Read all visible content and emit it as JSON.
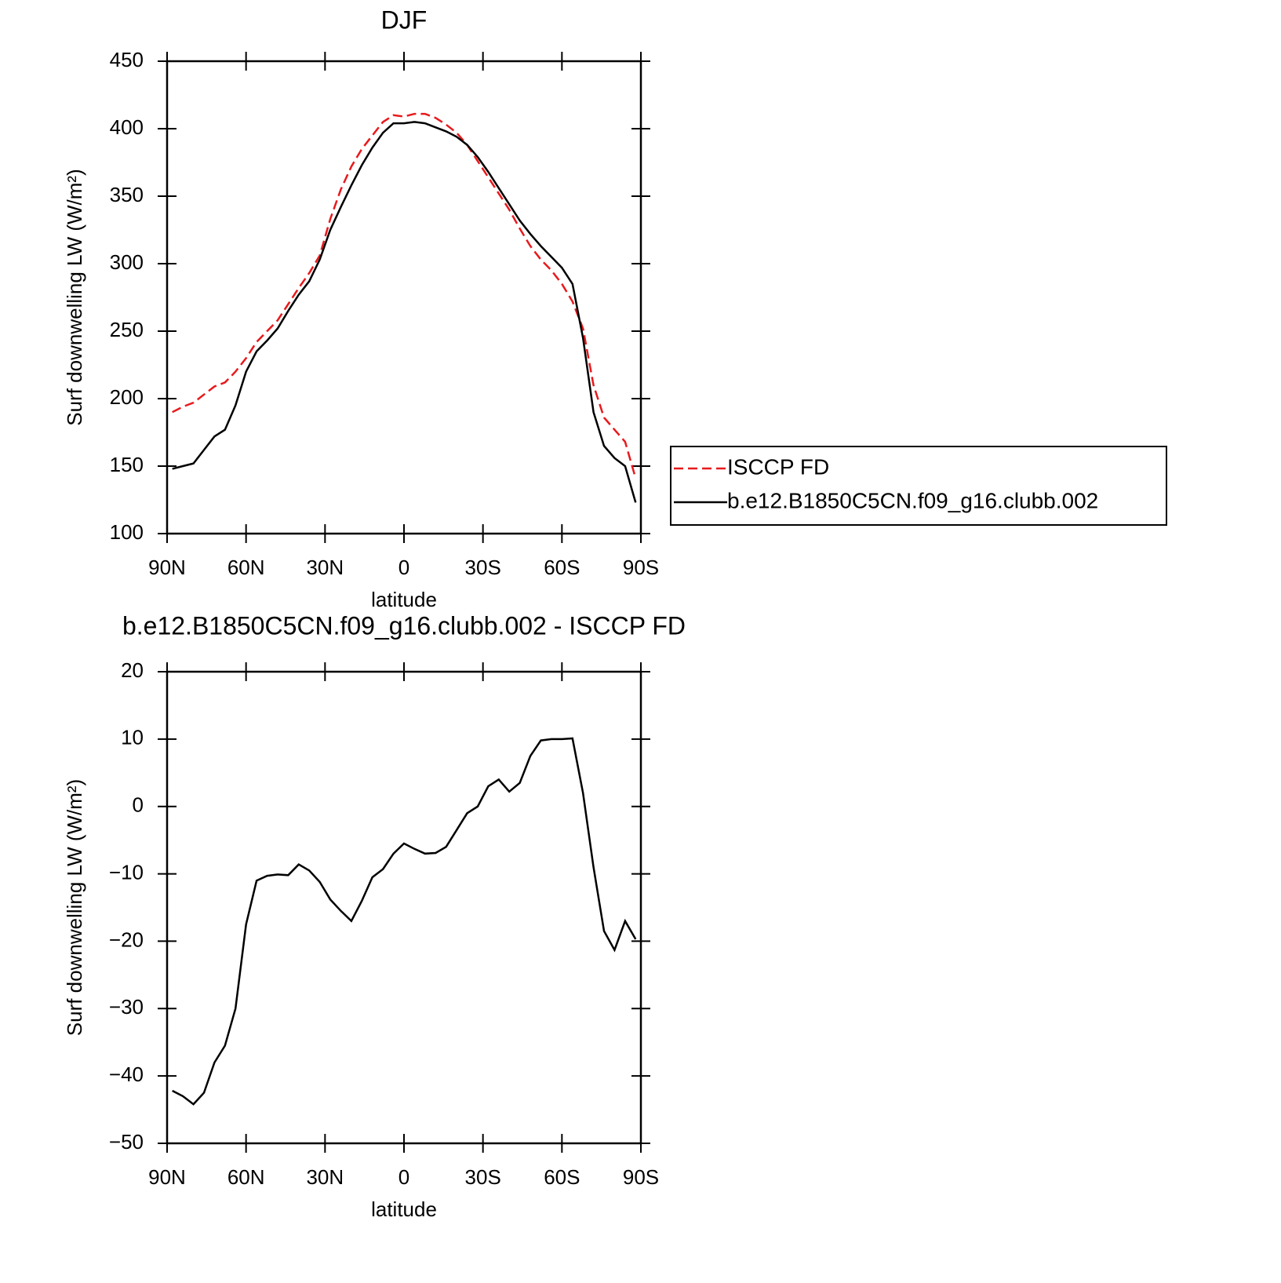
{
  "chart_data": [
    {
      "type": "line",
      "title": "DJF",
      "x_label": "latitude",
      "y_label": "Surf downwelling LW (W/m²)",
      "x": [
        88,
        84,
        80,
        76,
        72,
        68,
        64,
        60,
        56,
        52,
        48,
        44,
        40,
        36,
        32,
        28,
        24,
        20,
        16,
        12,
        8,
        4,
        0,
        -4,
        -8,
        -12,
        -16,
        -20,
        -24,
        -28,
        -32,
        -36,
        -40,
        -44,
        -48,
        -52,
        -56,
        -60,
        -64,
        -68,
        -72,
        -76,
        -80,
        -84,
        -88
      ],
      "xlim": [
        90,
        -90
      ],
      "xticks": [
        {
          "value": 90,
          "label": "90N"
        },
        {
          "value": 60,
          "label": "60N"
        },
        {
          "value": 30,
          "label": "30N"
        },
        0,
        {
          "value": -30,
          "label": "30S"
        },
        {
          "value": -60,
          "label": "60S"
        },
        {
          "value": -90,
          "label": "90S"
        }
      ],
      "ylim": [
        100,
        450
      ],
      "yticks": [
        100,
        150,
        200,
        250,
        300,
        350,
        400,
        450
      ],
      "legend": "outside-right",
      "series": [
        {
          "name": "ISCCP FD",
          "color": "#e8191c",
          "style": "dashed",
          "values": [
            190,
            194,
            197,
            203,
            209,
            212,
            220,
            230,
            242,
            250,
            258,
            270,
            282,
            293,
            306,
            333,
            355,
            372,
            385,
            395,
            405,
            410,
            409,
            411,
            411,
            408,
            403,
            397,
            388,
            376,
            364,
            352,
            340,
            326,
            313,
            303,
            295,
            285,
            272,
            252,
            210,
            186,
            177,
            168,
            141
          ]
        },
        {
          "name": "b.e12.B1850C5CN.f09_g16.clubb.002",
          "color": "#000000",
          "style": "solid",
          "values": [
            148,
            150,
            152,
            162,
            172,
            177,
            195,
            220,
            235,
            243,
            252,
            265,
            277,
            287,
            303,
            325,
            342,
            358,
            373,
            386,
            397,
            404,
            404,
            405,
            404,
            401,
            398,
            394,
            388,
            379,
            368,
            356,
            344,
            332,
            322,
            313,
            305,
            297,
            285,
            245,
            190,
            165,
            156,
            150,
            123
          ]
        }
      ]
    },
    {
      "type": "line",
      "title": "b.e12.B1850C5CN.f09_g16.clubb.002 - ISCCP FD",
      "x_label": "latitude",
      "y_label": "Surf downwelling LW (W/m²)",
      "x": [
        88,
        84,
        80,
        76,
        72,
        68,
        64,
        60,
        56,
        52,
        48,
        44,
        40,
        36,
        32,
        28,
        24,
        20,
        16,
        12,
        8,
        4,
        0,
        -4,
        -8,
        -12,
        -16,
        -20,
        -24,
        -28,
        -32,
        -36,
        -40,
        -44,
        -48,
        -52,
        -56,
        -60,
        -64,
        -68,
        -72,
        -76,
        -80,
        -84,
        -88
      ],
      "xlim": [
        90,
        -90
      ],
      "xticks": [
        {
          "value": 90,
          "label": "90N"
        },
        {
          "value": 60,
          "label": "60N"
        },
        {
          "value": 30,
          "label": "30N"
        },
        0,
        {
          "value": -30,
          "label": "30S"
        },
        {
          "value": -60,
          "label": "60S"
        },
        {
          "value": -90,
          "label": "90S"
        }
      ],
      "ylim": [
        -50,
        20
      ],
      "yticks": [
        -50,
        -40,
        -30,
        -20,
        -10,
        0,
        10,
        20
      ],
      "series": [
        {
          "color": "#000000",
          "style": "solid",
          "values": [
            -42.2,
            -43,
            -44.2,
            -42.5,
            -38,
            -35.5,
            -30,
            -17.5,
            -11,
            -10.3,
            -10.1,
            -10.2,
            -8.6,
            -9.5,
            -11.2,
            -13.8,
            -15.5,
            -17,
            -14,
            -10.5,
            -9.3,
            -7,
            -5.5,
            -6.3,
            -7,
            -6.9,
            -6,
            -3.5,
            -1,
            0,
            3,
            4,
            2.2,
            3.5,
            7.5,
            9.8,
            10,
            10,
            10.1,
            2,
            -9,
            -18.5,
            -21.3,
            -17,
            -19.7
          ]
        }
      ]
    }
  ]
}
